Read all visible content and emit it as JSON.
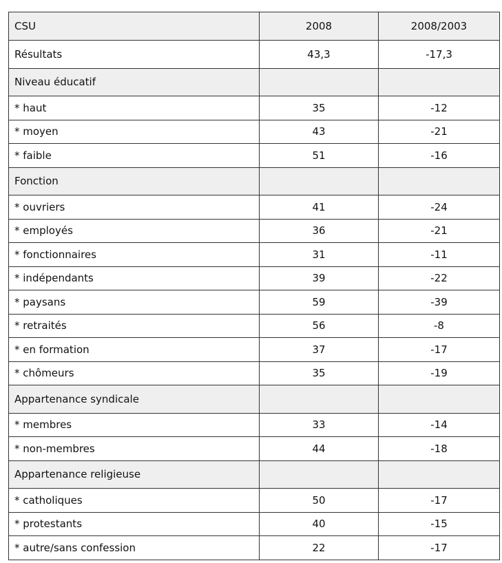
{
  "header": {
    "label": "CSU",
    "v2008": "2008",
    "change": "2008/2003"
  },
  "rows": [
    {
      "label": "Résultats",
      "v2008": "43,3",
      "change": "-17,3"
    },
    {
      "label": "Niveau éducatif"
    },
    {
      "label": "* haut",
      "v2008": "35",
      "change": "-12"
    },
    {
      "label": "* moyen",
      "v2008": "43",
      "change": "-21"
    },
    {
      "label": "* faible",
      "v2008": "51",
      "change": "-16"
    },
    {
      "label": "Fonction"
    },
    {
      "label": "* ouvriers",
      "v2008": "41",
      "change": "-24"
    },
    {
      "label": "* employés",
      "v2008": "36",
      "change": "-21"
    },
    {
      "label": "* fonctionnaires",
      "v2008": "31",
      "change": "-11"
    },
    {
      "label": "* indépendants",
      "v2008": "39",
      "change": "-22"
    },
    {
      "label": "* paysans",
      "v2008": "59",
      "change": "-39"
    },
    {
      "label": "* retraités",
      "v2008": "56",
      "change": "-8"
    },
    {
      "label": "* en formation",
      "v2008": "37",
      "change": "-17"
    },
    {
      "label": "* chômeurs",
      "v2008": "35",
      "change": "-19"
    },
    {
      "label": "Appartenance syndicale"
    },
    {
      "label": "* membres",
      "v2008": "33",
      "change": "-14"
    },
    {
      "label": "* non-membres",
      "v2008": "44",
      "change": "-18"
    },
    {
      "label": "Appartenance religieuse"
    },
    {
      "label": "* catholiques",
      "v2008": "50",
      "change": "-17"
    },
    {
      "label": "* protestants",
      "v2008": "40",
      "change": "-15"
    },
    {
      "label": "* autre/sans confession",
      "v2008": "22",
      "change": "-17"
    }
  ]
}
